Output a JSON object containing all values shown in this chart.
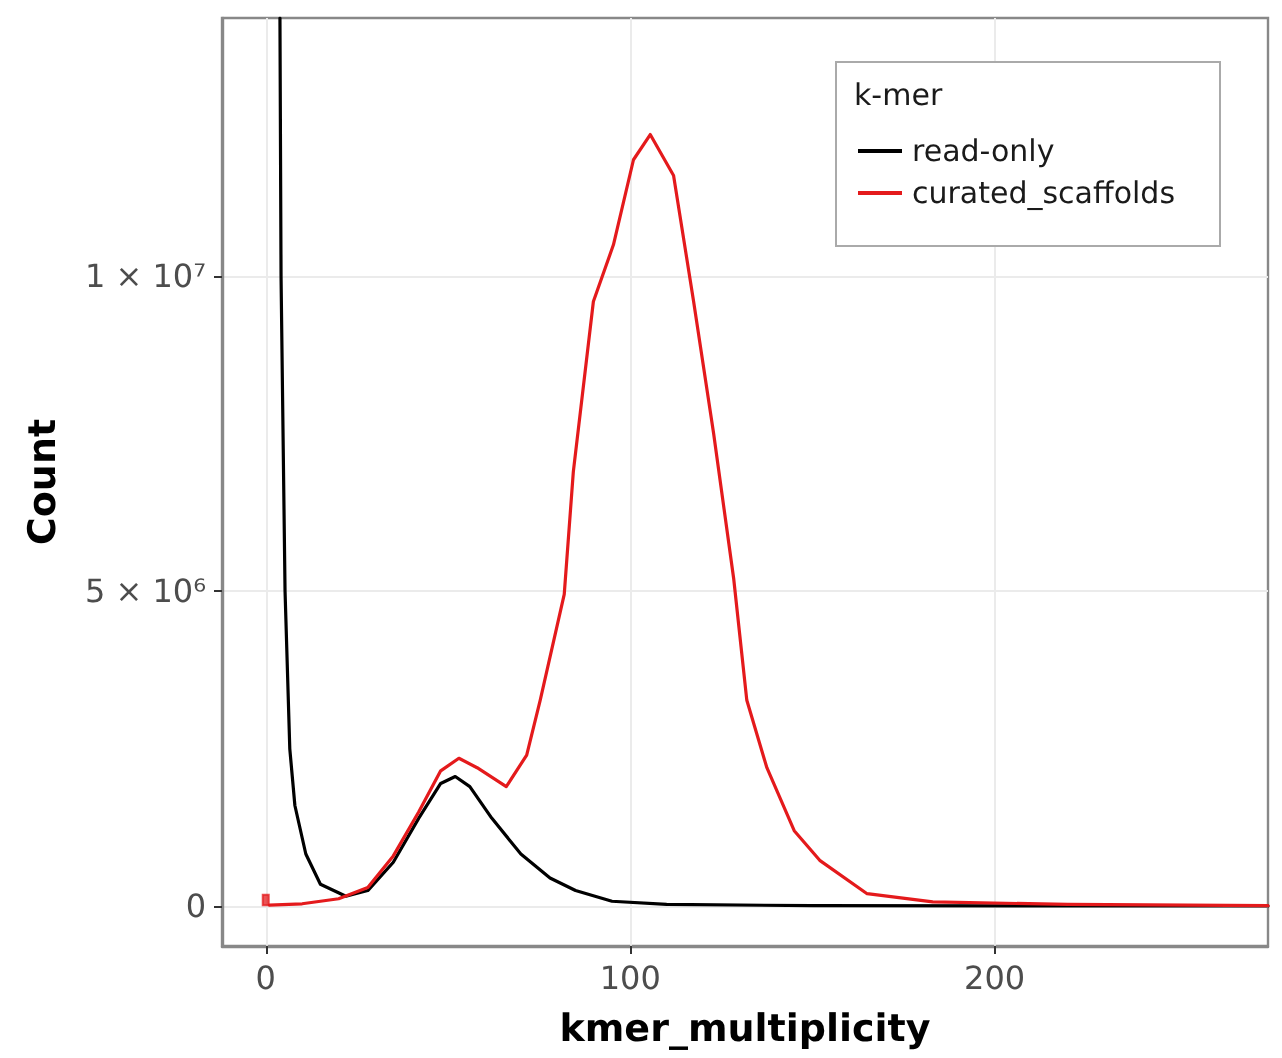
{
  "chart_data": {
    "type": "line",
    "xlabel": "kmer_multiplicity",
    "ylabel": "Count",
    "legend_title": "k-mer",
    "legend": "top right",
    "grid": true,
    "marker": "none",
    "line_style": "solid",
    "xlim": [
      -12,
      275
    ],
    "ylim": [
      -630000,
      14100000
    ],
    "xticks": [
      0,
      100,
      200
    ],
    "yticks": [
      0,
      {
        "value": 5000000,
        "label": "5 × 10⁶"
      },
      {
        "value": 10000000,
        "label": "1 × 10⁷"
      }
    ],
    "series": [
      {
        "name": "read-only",
        "color": "#000000",
        "x": [
          3.9,
          4.2,
          5.3,
          6.6,
          8,
          11,
          15,
          22,
          28,
          35,
          42,
          48,
          52,
          56,
          62,
          70,
          78,
          85,
          95,
          110,
          150,
          275
        ],
        "values": [
          14100000,
          10000000,
          5000000,
          2500000,
          1600000,
          830000,
          350000,
          160000,
          250000,
          700000,
          1400000,
          1950000,
          2060000,
          1900000,
          1400000,
          830000,
          450000,
          250000,
          80000,
          30000,
          10000,
          5000
        ]
      },
      {
        "name": "curated_scaffolds",
        "color": "#e41a1c",
        "x": [
          1,
          10,
          20,
          28,
          35,
          42,
          48,
          53,
          58,
          66,
          71.6,
          75.3,
          81.9,
          84.4,
          89.9,
          95.4,
          100.9,
          105.5,
          111.9,
          117.4,
          122.9,
          128.4,
          132,
          137.5,
          145,
          152,
          165,
          183,
          220,
          275
        ],
        "values": [
          20000,
          40000,
          120000,
          300000,
          800000,
          1500000,
          2150000,
          2350000,
          2200000,
          1900000,
          2400000,
          3270000,
          4950000,
          6900000,
          9600000,
          10500000,
          11850000,
          12250000,
          11600000,
          9600000,
          7500000,
          5200000,
          3270000,
          2200000,
          1200000,
          730000,
          200000,
          70000,
          30000,
          10000
        ]
      },
      {
        "type": "bar",
        "color": "#e41a1c",
        "x": [
          0
        ],
        "values": [
          200000
        ]
      }
    ]
  }
}
